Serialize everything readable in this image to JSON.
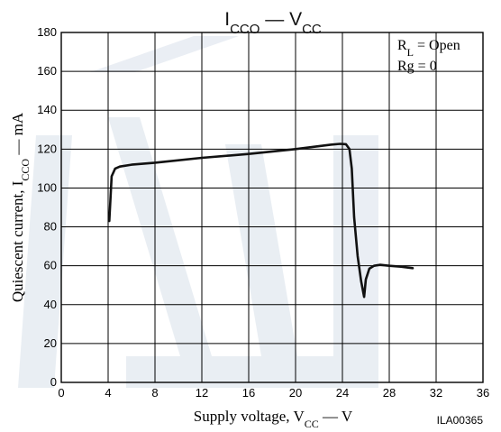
{
  "chart_data": {
    "type": "line",
    "title_main": "I",
    "title_sub": "CCO",
    "title_sep": " — V",
    "title_sub2": "CC",
    "xlabel_pre": "Supply voltage, V",
    "xlabel_sub": "CC",
    "xlabel_post": " — V",
    "ylabel_pre": "Quiescent current, I",
    "ylabel_sub": "CCO",
    "ylabel_post": " — mA",
    "xlim": [
      0,
      36
    ],
    "ylim": [
      0,
      180
    ],
    "xticks": [
      0,
      4,
      8,
      12,
      16,
      20,
      24,
      28,
      32,
      36
    ],
    "yticks": [
      0,
      20,
      40,
      60,
      80,
      100,
      120,
      140,
      160,
      180
    ],
    "grid": true,
    "annotation_1_pre": "R",
    "annotation_1_sub": "L",
    "annotation_1_post": " = Open",
    "annotation_2": "Rg = 0",
    "figure_code": "ILA00365",
    "series": [
      {
        "color": "#111111",
        "x": [
          4.1,
          4.3,
          4.6,
          5.0,
          6.0,
          8.0,
          12.0,
          16.0,
          20.0,
          22.0,
          23.0,
          23.8,
          24.3,
          24.6,
          24.8,
          25.0,
          25.3,
          25.6,
          25.85,
          26.0,
          26.3,
          26.7,
          27.2,
          28.0,
          29.0,
          30.0
        ],
        "y": [
          83,
          106,
          110,
          111,
          112,
          113,
          115.5,
          117.5,
          120,
          121.5,
          122.3,
          122.7,
          122.5,
          120,
          110,
          85,
          65,
          52,
          44,
          53,
          58.5,
          60,
          60.5,
          60,
          59.5,
          58.8
        ]
      }
    ]
  }
}
